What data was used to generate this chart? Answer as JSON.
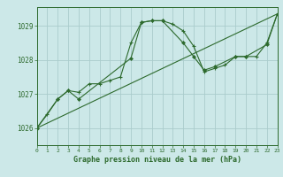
{
  "background_color": "#cce8e8",
  "grid_color": "#aacccc",
  "line_color": "#2d6a2d",
  "title": "Graphe pression niveau de la mer (hPa)",
  "xlim": [
    0,
    23
  ],
  "ylim": [
    1025.5,
    1029.55
  ],
  "yticks": [
    1026,
    1027,
    1028,
    1029
  ],
  "xticks": [
    0,
    1,
    2,
    3,
    4,
    5,
    6,
    7,
    8,
    9,
    10,
    11,
    12,
    13,
    14,
    15,
    16,
    17,
    18,
    19,
    20,
    21,
    22,
    23
  ],
  "series1_x": [
    0,
    1,
    2,
    3,
    4,
    5,
    6,
    7,
    8,
    9,
    10,
    11,
    12,
    13,
    14,
    15,
    16,
    17,
    18,
    19,
    20,
    21,
    22,
    23
  ],
  "series1_y": [
    1026.0,
    1026.4,
    1026.85,
    1027.1,
    1027.05,
    1027.3,
    1027.3,
    1027.4,
    1027.5,
    1028.5,
    1029.1,
    1029.15,
    1029.15,
    1029.05,
    1028.85,
    1028.4,
    1027.65,
    1027.75,
    1027.85,
    1028.1,
    1028.1,
    1028.1,
    1028.5,
    1029.35
  ],
  "series2_x": [
    0,
    2,
    3,
    4,
    9,
    10,
    11,
    12,
    14,
    15,
    16,
    17,
    19,
    20,
    22,
    23
  ],
  "series2_y": [
    1026.0,
    1026.85,
    1027.1,
    1026.85,
    1028.05,
    1029.1,
    1029.15,
    1029.15,
    1028.5,
    1028.1,
    1027.7,
    1027.8,
    1028.1,
    1028.1,
    1028.45,
    1029.35
  ],
  "series3_x": [
    0,
    23
  ],
  "series3_y": [
    1026.0,
    1029.35
  ]
}
